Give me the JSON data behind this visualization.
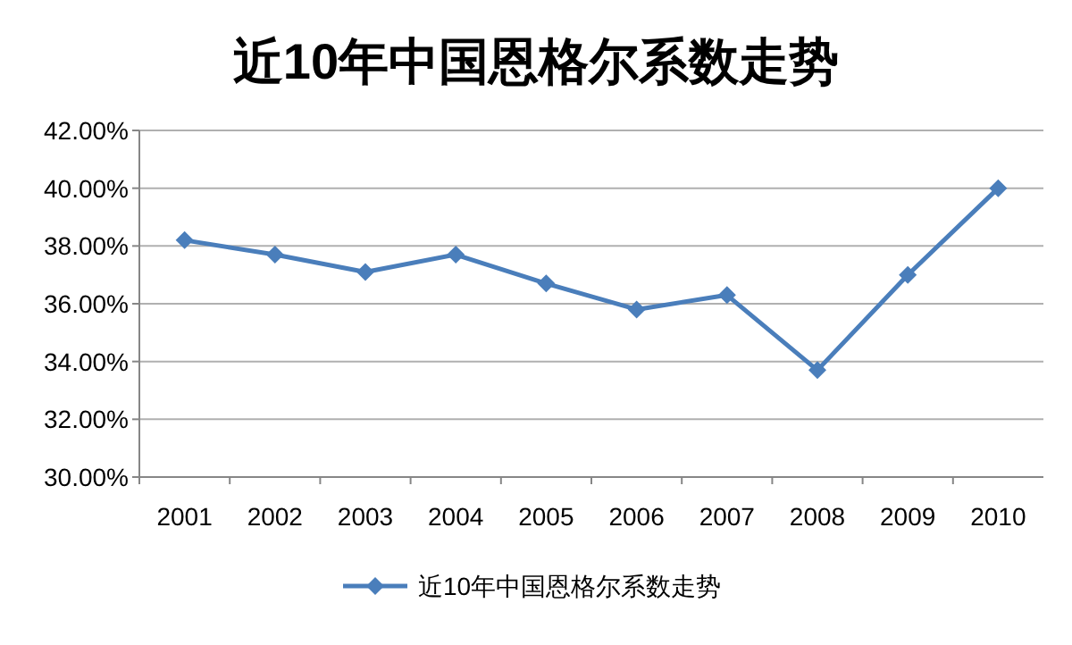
{
  "chart_data": {
    "type": "line",
    "title": "近10年中国恩格尔系数走势",
    "categories": [
      "2001",
      "2002",
      "2003",
      "2004",
      "2005",
      "2006",
      "2007",
      "2008",
      "2009",
      "2010"
    ],
    "series": [
      {
        "name": "近10年中国恩格尔系数走势",
        "color": "#4a7ebb",
        "values": [
          38.2,
          37.7,
          37.1,
          37.7,
          36.7,
          35.8,
          36.3,
          33.7,
          37.0,
          40.0
        ]
      }
    ],
    "ylim": [
      30,
      42
    ],
    "yticks": [
      {
        "value": 30,
        "label": "30.00%"
      },
      {
        "value": 32,
        "label": "32.00%"
      },
      {
        "value": 34,
        "label": "34.00%"
      },
      {
        "value": 36,
        "label": "36.00%"
      },
      {
        "value": 38,
        "label": "38.00%"
      },
      {
        "value": 40,
        "label": "40.00%"
      },
      {
        "value": 42,
        "label": "42.00%"
      }
    ],
    "grid": "y",
    "legend": "bottom",
    "marker": "diamond"
  }
}
